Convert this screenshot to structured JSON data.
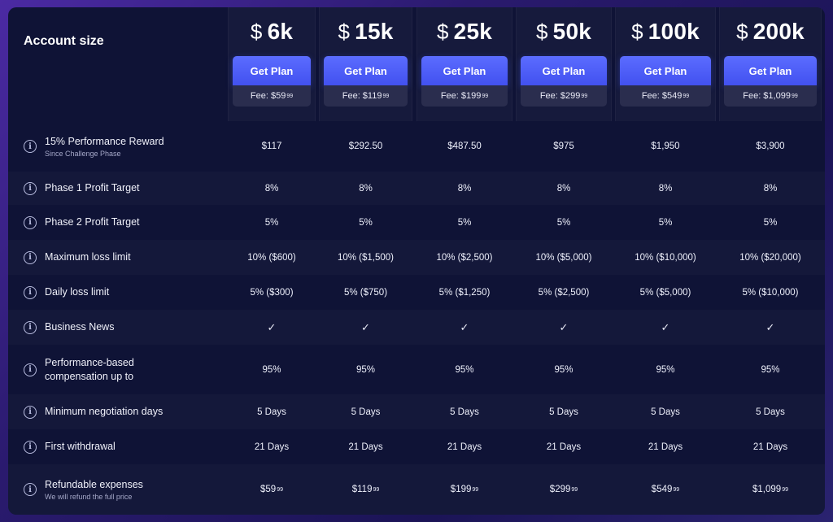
{
  "header": {
    "account_size_label": "Account size"
  },
  "plans": [
    {
      "currency": "$",
      "amount": "6k",
      "button_label": "Get Plan",
      "fee_prefix": "Fee: $59",
      "fee_cents": "99"
    },
    {
      "currency": "$",
      "amount": "15k",
      "button_label": "Get Plan",
      "fee_prefix": "Fee: $119",
      "fee_cents": "99"
    },
    {
      "currency": "$",
      "amount": "25k",
      "button_label": "Get Plan",
      "fee_prefix": "Fee: $199",
      "fee_cents": "99"
    },
    {
      "currency": "$",
      "amount": "50k",
      "button_label": "Get Plan",
      "fee_prefix": "Fee: $299",
      "fee_cents": "99"
    },
    {
      "currency": "$",
      "amount": "100k",
      "button_label": "Get Plan",
      "fee_prefix": "Fee: $549",
      "fee_cents": "99"
    },
    {
      "currency": "$",
      "amount": "200k",
      "button_label": "Get Plan",
      "fee_prefix": "Fee: $1,099",
      "fee_cents": "99"
    }
  ],
  "rows": [
    {
      "label": "15% Performance Reward",
      "sub": "Since Challenge Phase",
      "values": [
        "$117",
        "$292.50",
        "$487.50",
        "$975",
        "$1,950",
        "$3,900"
      ]
    },
    {
      "label": "Phase 1 Profit Target",
      "sub": "",
      "values": [
        "8%",
        "8%",
        "8%",
        "8%",
        "8%",
        "8%"
      ]
    },
    {
      "label": "Phase 2 Profit Target",
      "sub": "",
      "values": [
        "5%",
        "5%",
        "5%",
        "5%",
        "5%",
        "5%"
      ]
    },
    {
      "label": "Maximum loss limit",
      "sub": "",
      "values": [
        "10% ($600)",
        "10% ($1,500)",
        "10% ($2,500)",
        "10% ($5,000)",
        "10% ($10,000)",
        "10% ($20,000)"
      ]
    },
    {
      "label": "Daily loss limit",
      "sub": "",
      "values": [
        "5% ($300)",
        "5% ($750)",
        "5% ($1,250)",
        "5% ($2,500)",
        "5% ($5,000)",
        "5% ($10,000)"
      ]
    },
    {
      "label": "Business News",
      "sub": "",
      "values": [
        "✓",
        "✓",
        "✓",
        "✓",
        "✓",
        "✓"
      ]
    },
    {
      "label": "Performance-based compensation up to",
      "sub": "",
      "values": [
        "95%",
        "95%",
        "95%",
        "95%",
        "95%",
        "95%"
      ]
    },
    {
      "label": "Minimum negotiation days",
      "sub": "",
      "values": [
        "5 Days",
        "5 Days",
        "5 Days",
        "5 Days",
        "5 Days",
        "5 Days"
      ]
    },
    {
      "label": "First withdrawal",
      "sub": "",
      "values": [
        "21 Days",
        "21 Days",
        "21 Days",
        "21 Days",
        "21 Days",
        "21 Days"
      ]
    },
    {
      "label": "Refundable expenses",
      "sub": "We will refund the full price",
      "values": [
        "$59",
        "$119",
        "$199",
        "$299",
        "$549",
        "$1,099"
      ],
      "cents": "99"
    }
  ],
  "icons": {
    "info": "info-icon",
    "check": "check-icon"
  },
  "colors": {
    "accent": "#4f5ff8",
    "panel": "#0f1336"
  }
}
